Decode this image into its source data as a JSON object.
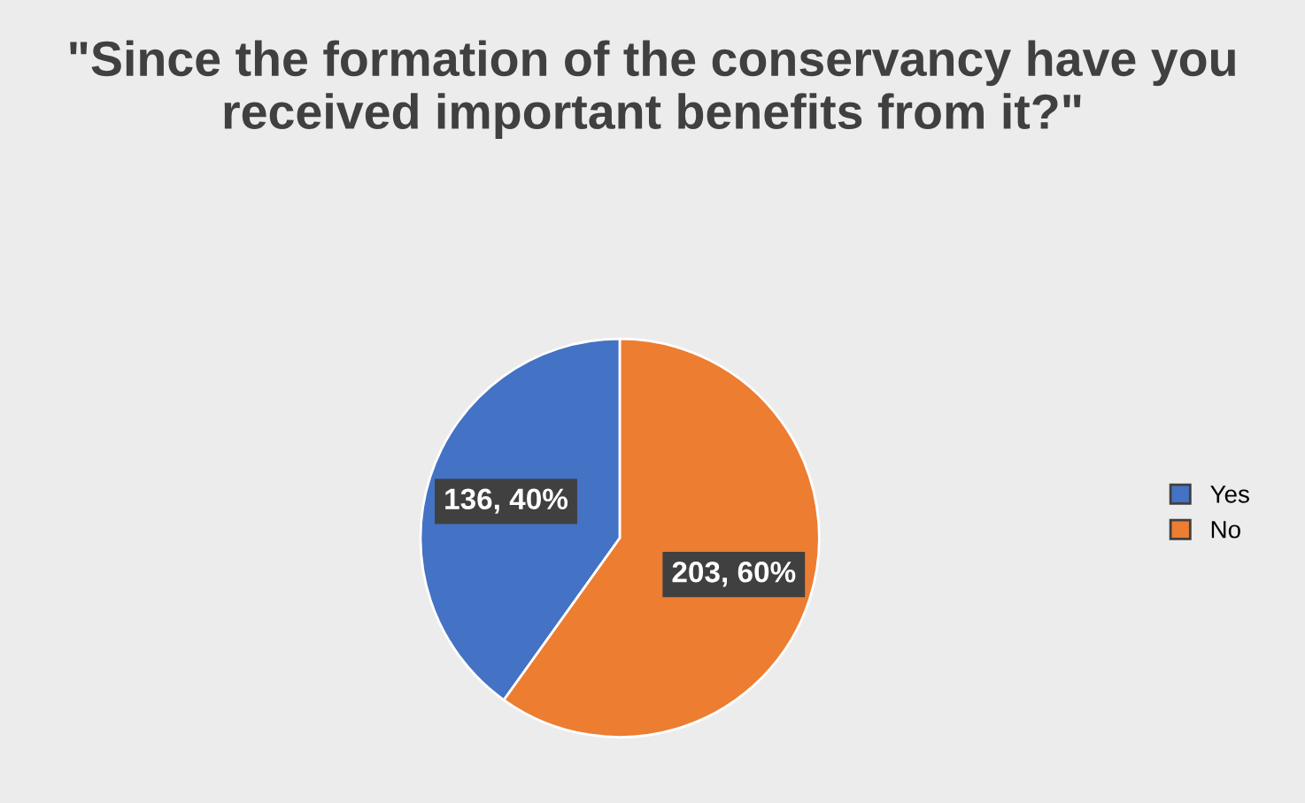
{
  "chart_data": {
    "type": "pie",
    "title": "\"Since the formation of the conservancy have you received important benefits from it?\"",
    "categories": [
      "Yes",
      "No"
    ],
    "values": [
      136,
      203
    ],
    "colors": [
      "#4472c4",
      "#ed7d31"
    ],
    "value_labels": [
      "136, 40%",
      "203, 60%"
    ],
    "legend": "right"
  }
}
